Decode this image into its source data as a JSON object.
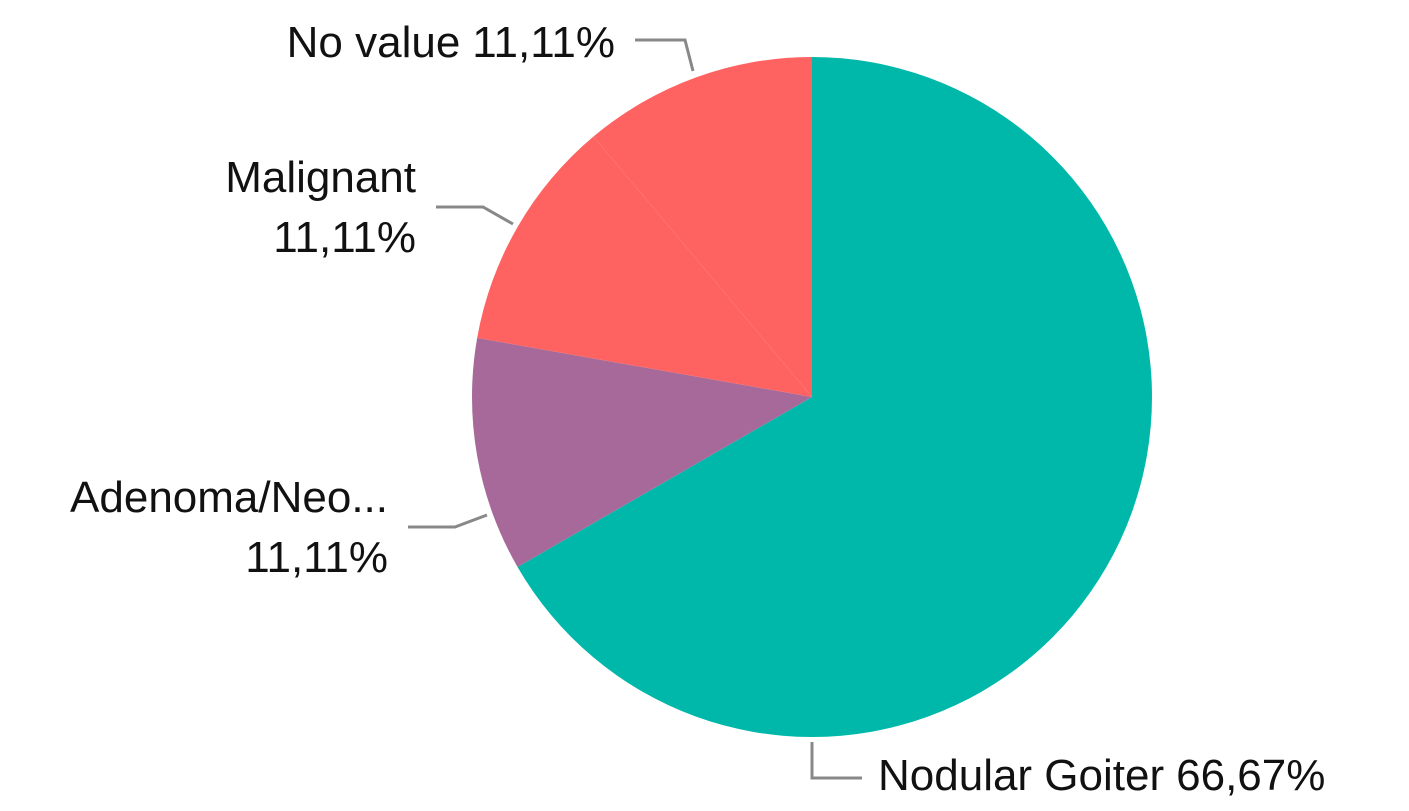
{
  "chart_data": {
    "type": "pie",
    "categories": [
      "Nodular Goiter",
      "Adenoma/Neo...",
      "Malignant",
      "No value"
    ],
    "values": [
      66.67,
      11.11,
      11.11,
      11.11
    ],
    "value_labels": [
      "66,67%",
      "11,11%",
      "11,11%",
      "11,11%"
    ],
    "colors": [
      "#00B8AA",
      "#A66999",
      "#FF6361",
      "#FF6361"
    ]
  }
}
